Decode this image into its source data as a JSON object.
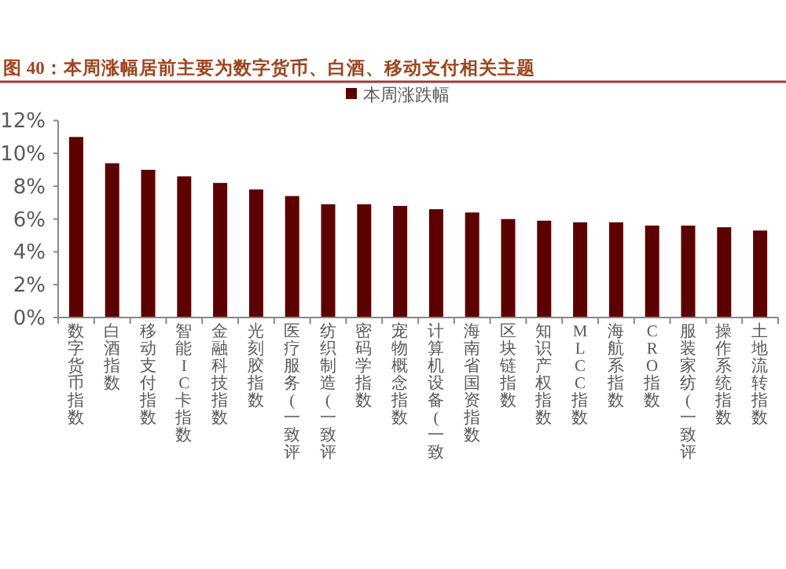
{
  "chart_data": {
    "type": "bar",
    "title": "图 40：本周涨幅居前主要为数字货币、白酒、移动支付相关主题",
    "categories": [
      "数字货币指数",
      "白酒指数",
      "移动支付指数",
      "智能IC卡指数",
      "金融科技指数",
      "光刻胶指数",
      "医疗服务(一致评",
      "纺织制造(一致评",
      "密码学指数",
      "宠物概念指数",
      "计算机设备(一致",
      "海南省国资指数",
      "区块链指数",
      "知识产权指数",
      "MLCC指数",
      "海航系指数",
      "CRO指数",
      "服装家纺(一致评",
      "操作系统指数",
      "土地流转指数"
    ],
    "series": [
      {
        "name": "本周涨跌幅",
        "color": "#5c0000",
        "values": [
          11.0,
          9.4,
          9.0,
          8.6,
          8.2,
          7.8,
          7.4,
          6.9,
          6.9,
          6.8,
          6.6,
          6.4,
          6.0,
          5.9,
          5.8,
          5.8,
          5.6,
          5.6,
          5.5,
          5.3
        ]
      }
    ],
    "ylim": [
      0,
      12
    ],
    "yticks": [
      {
        "value": 0,
        "label": "0%"
      },
      {
        "value": 2,
        "label": "2%"
      },
      {
        "value": 4,
        "label": "4%"
      },
      {
        "value": 6,
        "label": "6%"
      },
      {
        "value": 8,
        "label": "8%"
      },
      {
        "value": 10,
        "label": "10%"
      },
      {
        "value": 12,
        "label": "12%"
      }
    ],
    "legend": "top",
    "grid": false
  }
}
